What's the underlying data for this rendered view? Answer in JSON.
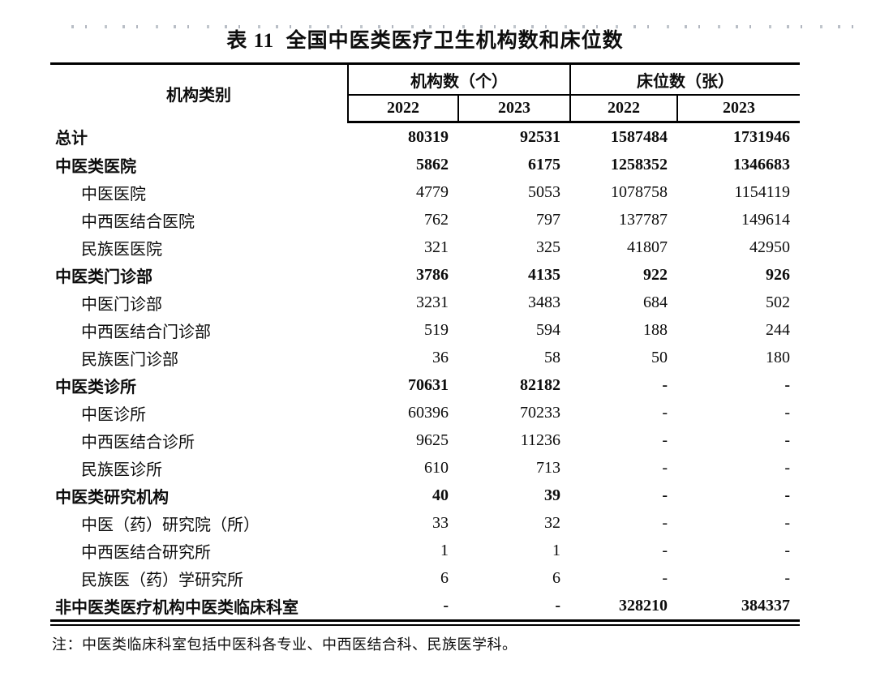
{
  "title": "表 11  全国中医类医疗卫生机构数和床位数",
  "table": {
    "category_header": "机构类别",
    "groups": [
      {
        "label": "机构数（个）",
        "years": [
          "2022",
          "2023"
        ]
      },
      {
        "label": "床位数（张）",
        "years": [
          "2022",
          "2023"
        ]
      }
    ],
    "rows": [
      {
        "label": "总计",
        "bold": true,
        "indent": false,
        "values": [
          "80319",
          "92531",
          "1587484",
          "1731946"
        ]
      },
      {
        "label": "中医类医院",
        "bold": true,
        "indent": false,
        "values": [
          "5862",
          "6175",
          "1258352",
          "1346683"
        ]
      },
      {
        "label": "中医医院",
        "bold": false,
        "indent": true,
        "values": [
          "4779",
          "5053",
          "1078758",
          "1154119"
        ]
      },
      {
        "label": "中西医结合医院",
        "bold": false,
        "indent": true,
        "values": [
          "762",
          "797",
          "137787",
          "149614"
        ]
      },
      {
        "label": "民族医医院",
        "bold": false,
        "indent": true,
        "values": [
          "321",
          "325",
          "41807",
          "42950"
        ]
      },
      {
        "label": "中医类门诊部",
        "bold": true,
        "indent": false,
        "values": [
          "3786",
          "4135",
          "922",
          "926"
        ]
      },
      {
        "label": "中医门诊部",
        "bold": false,
        "indent": true,
        "values": [
          "3231",
          "3483",
          "684",
          "502"
        ]
      },
      {
        "label": "中西医结合门诊部",
        "bold": false,
        "indent": true,
        "values": [
          "519",
          "594",
          "188",
          "244"
        ]
      },
      {
        "label": "民族医门诊部",
        "bold": false,
        "indent": true,
        "values": [
          "36",
          "58",
          "50",
          "180"
        ]
      },
      {
        "label": "中医类诊所",
        "bold": true,
        "indent": false,
        "values": [
          "70631",
          "82182",
          "-",
          "-"
        ]
      },
      {
        "label": "中医诊所",
        "bold": false,
        "indent": true,
        "values": [
          "60396",
          "70233",
          "-",
          "-"
        ]
      },
      {
        "label": "中西医结合诊所",
        "bold": false,
        "indent": true,
        "values": [
          "9625",
          "11236",
          "-",
          "-"
        ]
      },
      {
        "label": "民族医诊所",
        "bold": false,
        "indent": true,
        "values": [
          "610",
          "713",
          "-",
          "-"
        ]
      },
      {
        "label": "中医类研究机构",
        "bold": true,
        "indent": false,
        "values": [
          "40",
          "39",
          "-",
          "-"
        ]
      },
      {
        "label": "中医（药）研究院（所）",
        "bold": false,
        "indent": true,
        "values": [
          "33",
          "32",
          "-",
          "-"
        ]
      },
      {
        "label": "中西医结合研究所",
        "bold": false,
        "indent": true,
        "values": [
          "1",
          "1",
          "-",
          "-"
        ]
      },
      {
        "label": "民族医（药）学研究所",
        "bold": false,
        "indent": true,
        "values": [
          "6",
          "6",
          "-",
          "-"
        ]
      },
      {
        "label": "非中医类医疗机构中医类临床科室",
        "bold": true,
        "indent": false,
        "values": [
          "-",
          "-",
          "328210",
          "384337"
        ]
      }
    ]
  },
  "footnote": "注：中医类临床科室包括中医科各专业、中西医结合科、民族医学科。"
}
